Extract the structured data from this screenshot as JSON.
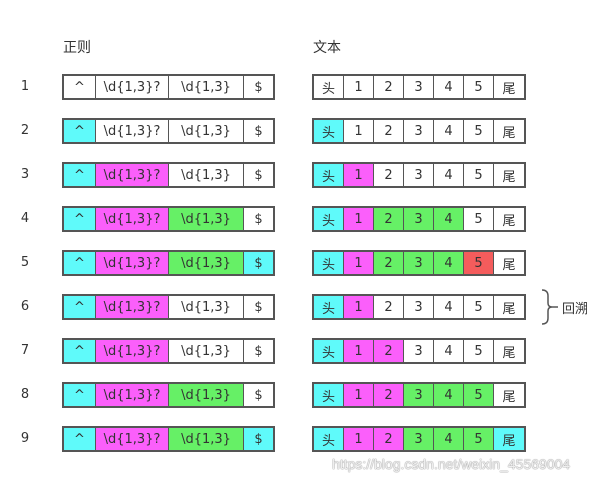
{
  "headers": {
    "regex": "正则",
    "text": "文本"
  },
  "regex_tokens": [
    "^",
    "\\d{1,3}?",
    "\\d{1,3}",
    "$"
  ],
  "text_chars": [
    "头",
    "1",
    "2",
    "3",
    "4",
    "5",
    "尾"
  ],
  "colors": {
    "c": "#5ffafa",
    "m": "#fb5ffb",
    "g": "#66f066",
    "r": "#f45c5c",
    "n": "#ffffff"
  },
  "steps": [
    {
      "label": "1",
      "regex": [
        "n",
        "n",
        "n",
        "n"
      ],
      "text": [
        "n",
        "n",
        "n",
        "n",
        "n",
        "n",
        "n"
      ]
    },
    {
      "label": "2",
      "regex": [
        "c",
        "n",
        "n",
        "n"
      ],
      "text": [
        "c",
        "n",
        "n",
        "n",
        "n",
        "n",
        "n"
      ]
    },
    {
      "label": "3",
      "regex": [
        "c",
        "m",
        "n",
        "n"
      ],
      "text": [
        "c",
        "m",
        "n",
        "n",
        "n",
        "n",
        "n"
      ]
    },
    {
      "label": "4",
      "regex": [
        "c",
        "m",
        "g",
        "n"
      ],
      "text": [
        "c",
        "m",
        "g",
        "g",
        "g",
        "n",
        "n"
      ]
    },
    {
      "label": "5",
      "regex": [
        "c",
        "m",
        "g",
        "c"
      ],
      "text": [
        "c",
        "m",
        "g",
        "g",
        "g",
        "r",
        "n"
      ]
    },
    {
      "label": "6",
      "regex": [
        "c",
        "m",
        "n",
        "n"
      ],
      "text": [
        "c",
        "m",
        "n",
        "n",
        "n",
        "n",
        "n"
      ]
    },
    {
      "label": "7",
      "regex": [
        "c",
        "m",
        "n",
        "n"
      ],
      "text": [
        "c",
        "m",
        "m",
        "n",
        "n",
        "n",
        "n"
      ]
    },
    {
      "label": "8",
      "regex": [
        "c",
        "m",
        "g",
        "n"
      ],
      "text": [
        "c",
        "m",
        "m",
        "g",
        "g",
        "g",
        "n"
      ]
    },
    {
      "label": "9",
      "regex": [
        "c",
        "m",
        "g",
        "c"
      ],
      "text": [
        "c",
        "m",
        "m",
        "g",
        "g",
        "g",
        "c"
      ]
    }
  ],
  "annotation": "回溯",
  "watermark": "https://blog.csdn.net/weixin_45569004"
}
